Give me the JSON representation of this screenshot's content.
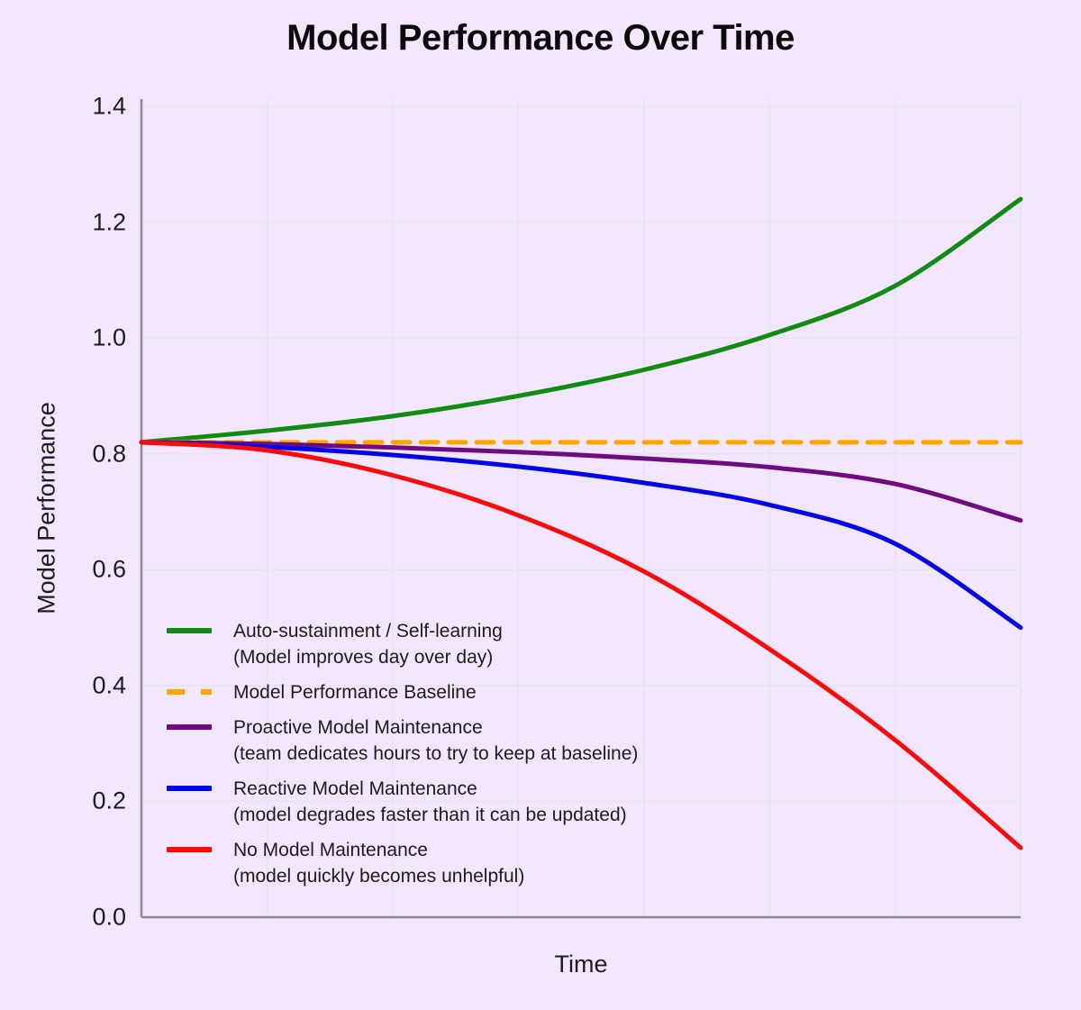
{
  "colors": {
    "background": "#f2e6fc",
    "grid": "#e7e2f0",
    "spine": "#8a8a90",
    "text": "#1d1d1d",
    "title_text": "#0a0a0a"
  },
  "chart_data": {
    "type": "line",
    "title": "Model Performance Over Time",
    "xlabel": "Time",
    "ylabel": "Model Performance",
    "xlim": [
      0,
      7
    ],
    "ylim": [
      0,
      1.4
    ],
    "grid": true,
    "legend_position": "lower-left-inside",
    "ytick_values": [
      0.0,
      0.2,
      0.4,
      0.6,
      0.8,
      1.0,
      1.2,
      1.4
    ],
    "ytick_labels": [
      "0.0",
      "0.2",
      "0.4",
      "0.6",
      "0.8",
      "1.0",
      "1.2",
      "1.4"
    ],
    "x_gridlines": [
      1,
      2,
      3,
      4,
      5,
      6,
      7
    ],
    "xtick_labels": [],
    "x": [
      0,
      1,
      2,
      3,
      4,
      5,
      6,
      7
    ],
    "series": [
      {
        "name": "Auto-sustainment / Self-learning",
        "subtitle": "(Model improves day over day)",
        "color": "#128b12",
        "style": "solid",
        "values": [
          0.82,
          0.84,
          0.865,
          0.9,
          0.945,
          1.005,
          1.09,
          1.24
        ]
      },
      {
        "name": "Model Performance Baseline",
        "subtitle": "",
        "color": "#ffa500",
        "style": "dashed",
        "values": [
          0.82,
          0.82,
          0.82,
          0.82,
          0.82,
          0.82,
          0.82,
          0.82
        ]
      },
      {
        "name": "Proactive Model Maintenance",
        "subtitle": "(team dedicates hours to try to keep at baseline)",
        "color": "#6f0d80",
        "style": "solid",
        "values": [
          0.82,
          0.817,
          0.811,
          0.803,
          0.792,
          0.777,
          0.748,
          0.685
        ]
      },
      {
        "name": "Reactive Model Maintenance",
        "subtitle": "(model degrades faster than it can be updated)",
        "color": "#0404e8",
        "style": "solid",
        "values": [
          0.82,
          0.812,
          0.798,
          0.778,
          0.75,
          0.712,
          0.645,
          0.5
        ]
      },
      {
        "name": "No Model Maintenance",
        "subtitle": "(model quickly becomes unhelpful)",
        "color": "#f80b0b",
        "style": "solid",
        "values": [
          0.82,
          0.806,
          0.763,
          0.694,
          0.597,
          0.463,
          0.306,
          0.12
        ]
      }
    ]
  }
}
